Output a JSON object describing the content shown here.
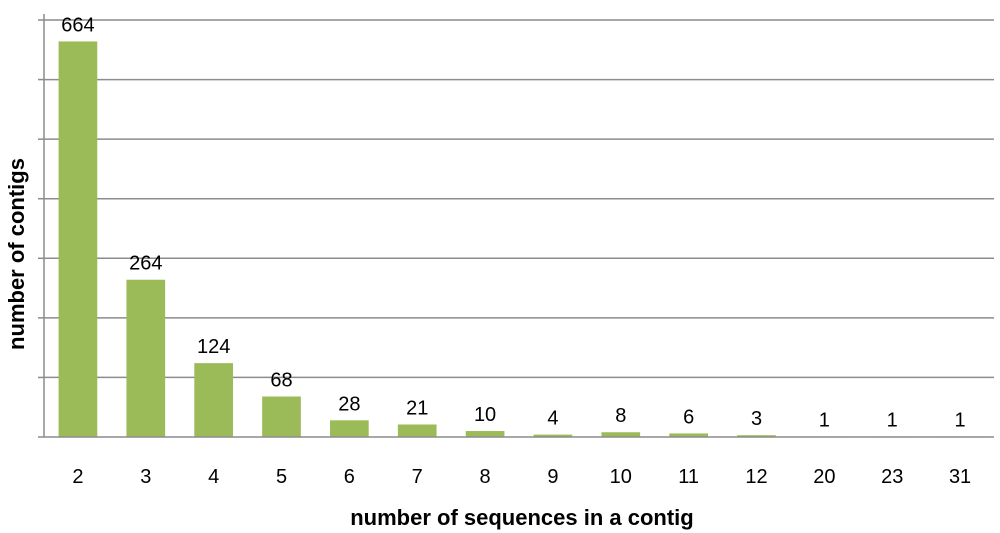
{
  "chart_data": {
    "type": "bar",
    "title": "",
    "xlabel": "number of sequences in a contig",
    "ylabel": "number of contigs",
    "categories": [
      "2",
      "3",
      "4",
      "5",
      "6",
      "7",
      "8",
      "9",
      "10",
      "11",
      "12",
      "20",
      "23",
      "31"
    ],
    "values": [
      664,
      264,
      124,
      68,
      28,
      21,
      10,
      4,
      8,
      6,
      3,
      1,
      1,
      1
    ],
    "data_labels": [
      "664",
      "264",
      "124",
      "68",
      "28",
      "21",
      "10",
      "4",
      "8",
      "6",
      "3",
      "1",
      "1",
      "1"
    ],
    "ylim": [
      0,
      700
    ],
    "y_gridlines": [
      0,
      100,
      200,
      300,
      400,
      500,
      600,
      700
    ],
    "y_tick_labels_shown": false,
    "grid": true,
    "legend": "none",
    "colors": {
      "bar": "#9bbb59",
      "grid": "#8c8c8c",
      "axis": "#8c8c8c"
    }
  }
}
